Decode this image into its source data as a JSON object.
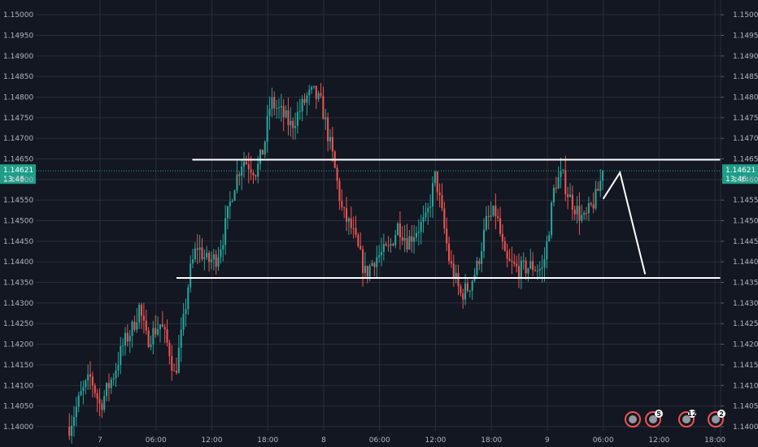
{
  "chart_data": {
    "type": "candlestick",
    "title": "",
    "ylim": [
      1.1399,
      1.1502
    ],
    "y_ticks": [
      {
        "value": 1.15,
        "label": "1.15000"
      },
      {
        "value": 1.1495,
        "label": "1.14950"
      },
      {
        "value": 1.149,
        "label": "1.14900"
      },
      {
        "value": 1.1485,
        "label": "1.14850"
      },
      {
        "value": 1.148,
        "label": "1.14800"
      },
      {
        "value": 1.1475,
        "label": "1.14750"
      },
      {
        "value": 1.147,
        "label": "1.14700"
      },
      {
        "value": 1.1465,
        "label": "1.14650"
      },
      {
        "value": 1.146,
        "label": "1.14600"
      },
      {
        "value": 1.1455,
        "label": "1.14550"
      },
      {
        "value": 1.145,
        "label": "1.14500"
      },
      {
        "value": 1.1445,
        "label": "1.14450"
      },
      {
        "value": 1.144,
        "label": "1.14400"
      },
      {
        "value": 1.1435,
        "label": "1.14350"
      },
      {
        "value": 1.143,
        "label": "1.14300"
      },
      {
        "value": 1.1425,
        "label": "1.14250"
      },
      {
        "value": 1.142,
        "label": "1.14200"
      },
      {
        "value": 1.1415,
        "label": "1.14150"
      },
      {
        "value": 1.141,
        "label": "1.14100"
      },
      {
        "value": 1.1405,
        "label": "1.14050"
      },
      {
        "value": 1.14,
        "label": "1.14000"
      }
    ],
    "x_range_hours": [
      -6.9,
      66.6
    ],
    "x_ticks": [
      {
        "hours": 0,
        "label": "7"
      },
      {
        "hours": 6,
        "label": "06:00"
      },
      {
        "hours": 12,
        "label": "12:00"
      },
      {
        "hours": 18,
        "label": "18:00"
      },
      {
        "hours": 24,
        "label": "8"
      },
      {
        "hours": 30,
        "label": "06:00"
      },
      {
        "hours": 36,
        "label": "12:00"
      },
      {
        "hours": 42,
        "label": "18:00"
      },
      {
        "hours": 48,
        "label": "9"
      },
      {
        "hours": 54,
        "label": "06:00"
      },
      {
        "hours": 60,
        "label": "12:00"
      },
      {
        "hours": 66,
        "label": "18:00"
      }
    ],
    "current_price": {
      "value": 1.14621,
      "label": "1.14621",
      "time_label": "13:46"
    },
    "candle_interval_hours": 0.25,
    "price_path": [
      {
        "h": -3.3,
        "p": 1.14
      },
      {
        "h": -2.0,
        "p": 1.1408
      },
      {
        "h": -1.0,
        "p": 1.1412
      },
      {
        "h": 0.0,
        "p": 1.1405
      },
      {
        "h": 1.5,
        "p": 1.1413
      },
      {
        "h": 2.5,
        "p": 1.142
      },
      {
        "h": 3.5,
        "p": 1.1424
      },
      {
        "h": 4.2,
        "p": 1.1429
      },
      {
        "h": 5.0,
        "p": 1.1421
      },
      {
        "h": 6.5,
        "p": 1.1425
      },
      {
        "h": 7.5,
        "p": 1.1418
      },
      {
        "h": 8.0,
        "p": 1.1412
      },
      {
        "h": 9.0,
        "p": 1.1426
      },
      {
        "h": 9.6,
        "p": 1.1437
      },
      {
        "h": 10.4,
        "p": 1.1444
      },
      {
        "h": 11.5,
        "p": 1.144
      },
      {
        "h": 12.5,
        "p": 1.1441
      },
      {
        "h": 13.2,
        "p": 1.1446
      },
      {
        "h": 14.3,
        "p": 1.1458
      },
      {
        "h": 15.3,
        "p": 1.1465
      },
      {
        "h": 16.8,
        "p": 1.1462
      },
      {
        "h": 17.6,
        "p": 1.1468
      },
      {
        "h": 18.3,
        "p": 1.1479
      },
      {
        "h": 19.5,
        "p": 1.1476
      },
      {
        "h": 20.5,
        "p": 1.1473
      },
      {
        "h": 21.5,
        "p": 1.1477
      },
      {
        "h": 22.2,
        "p": 1.148
      },
      {
        "h": 22.9,
        "p": 1.1481
      },
      {
        "h": 23.8,
        "p": 1.1478
      },
      {
        "h": 25.0,
        "p": 1.1465
      },
      {
        "h": 26.0,
        "p": 1.1452
      },
      {
        "h": 27.0,
        "p": 1.1448
      },
      {
        "h": 28.5,
        "p": 1.1437
      },
      {
        "h": 29.5,
        "p": 1.1441
      },
      {
        "h": 31.0,
        "p": 1.1443
      },
      {
        "h": 32.0,
        "p": 1.1449
      },
      {
        "h": 33.0,
        "p": 1.1445
      },
      {
        "h": 34.0,
        "p": 1.1448
      },
      {
        "h": 35.0,
        "p": 1.145
      },
      {
        "h": 36.0,
        "p": 1.1461
      },
      {
        "h": 36.8,
        "p": 1.145
      },
      {
        "h": 37.5,
        "p": 1.144
      },
      {
        "h": 38.7,
        "p": 1.1432
      },
      {
        "h": 39.6,
        "p": 1.1434
      },
      {
        "h": 40.5,
        "p": 1.1439
      },
      {
        "h": 41.5,
        "p": 1.145
      },
      {
        "h": 42.5,
        "p": 1.1452
      },
      {
        "h": 43.5,
        "p": 1.144
      },
      {
        "h": 45.0,
        "p": 1.1438
      },
      {
        "h": 46.3,
        "p": 1.1439
      },
      {
        "h": 47.5,
        "p": 1.1438
      },
      {
        "h": 48.0,
        "p": 1.1445
      },
      {
        "h": 48.8,
        "p": 1.1459
      },
      {
        "h": 49.6,
        "p": 1.1461
      },
      {
        "h": 50.3,
        "p": 1.1456
      },
      {
        "h": 51.3,
        "p": 1.1452
      },
      {
        "h": 52.0,
        "p": 1.145
      },
      {
        "h": 53.3,
        "p": 1.1456
      },
      {
        "h": 54.0,
        "p": 1.14621
      }
    ],
    "drawings": [
      {
        "type": "horizontal_line",
        "name": "resistance",
        "price": 1.14648,
        "from_hours": 9.9,
        "to_hours": 66.6,
        "color": "#ffffff"
      },
      {
        "type": "horizontal_line",
        "name": "support",
        "price": 1.14361,
        "from_hours": 8.2,
        "to_hours": 66.6,
        "color": "#ffffff"
      },
      {
        "type": "polyline",
        "name": "projection",
        "color": "#ffffff",
        "points": [
          [
            54.0,
            1.14553
          ],
          [
            55.8,
            1.14617
          ],
          [
            58.5,
            1.1437
          ]
        ]
      }
    ],
    "colors": {
      "up": "#26a69a",
      "down": "#ef5350",
      "grid": "#2a2e39",
      "current": "#1e9e89",
      "background": "#131722"
    },
    "event_badges": [
      {
        "count": "",
        "icon": "gear"
      },
      {
        "count": "5",
        "icon": "flag"
      },
      {
        "count": "12",
        "icon": "flag"
      },
      {
        "count": "2",
        "icon": "flag"
      }
    ]
  }
}
